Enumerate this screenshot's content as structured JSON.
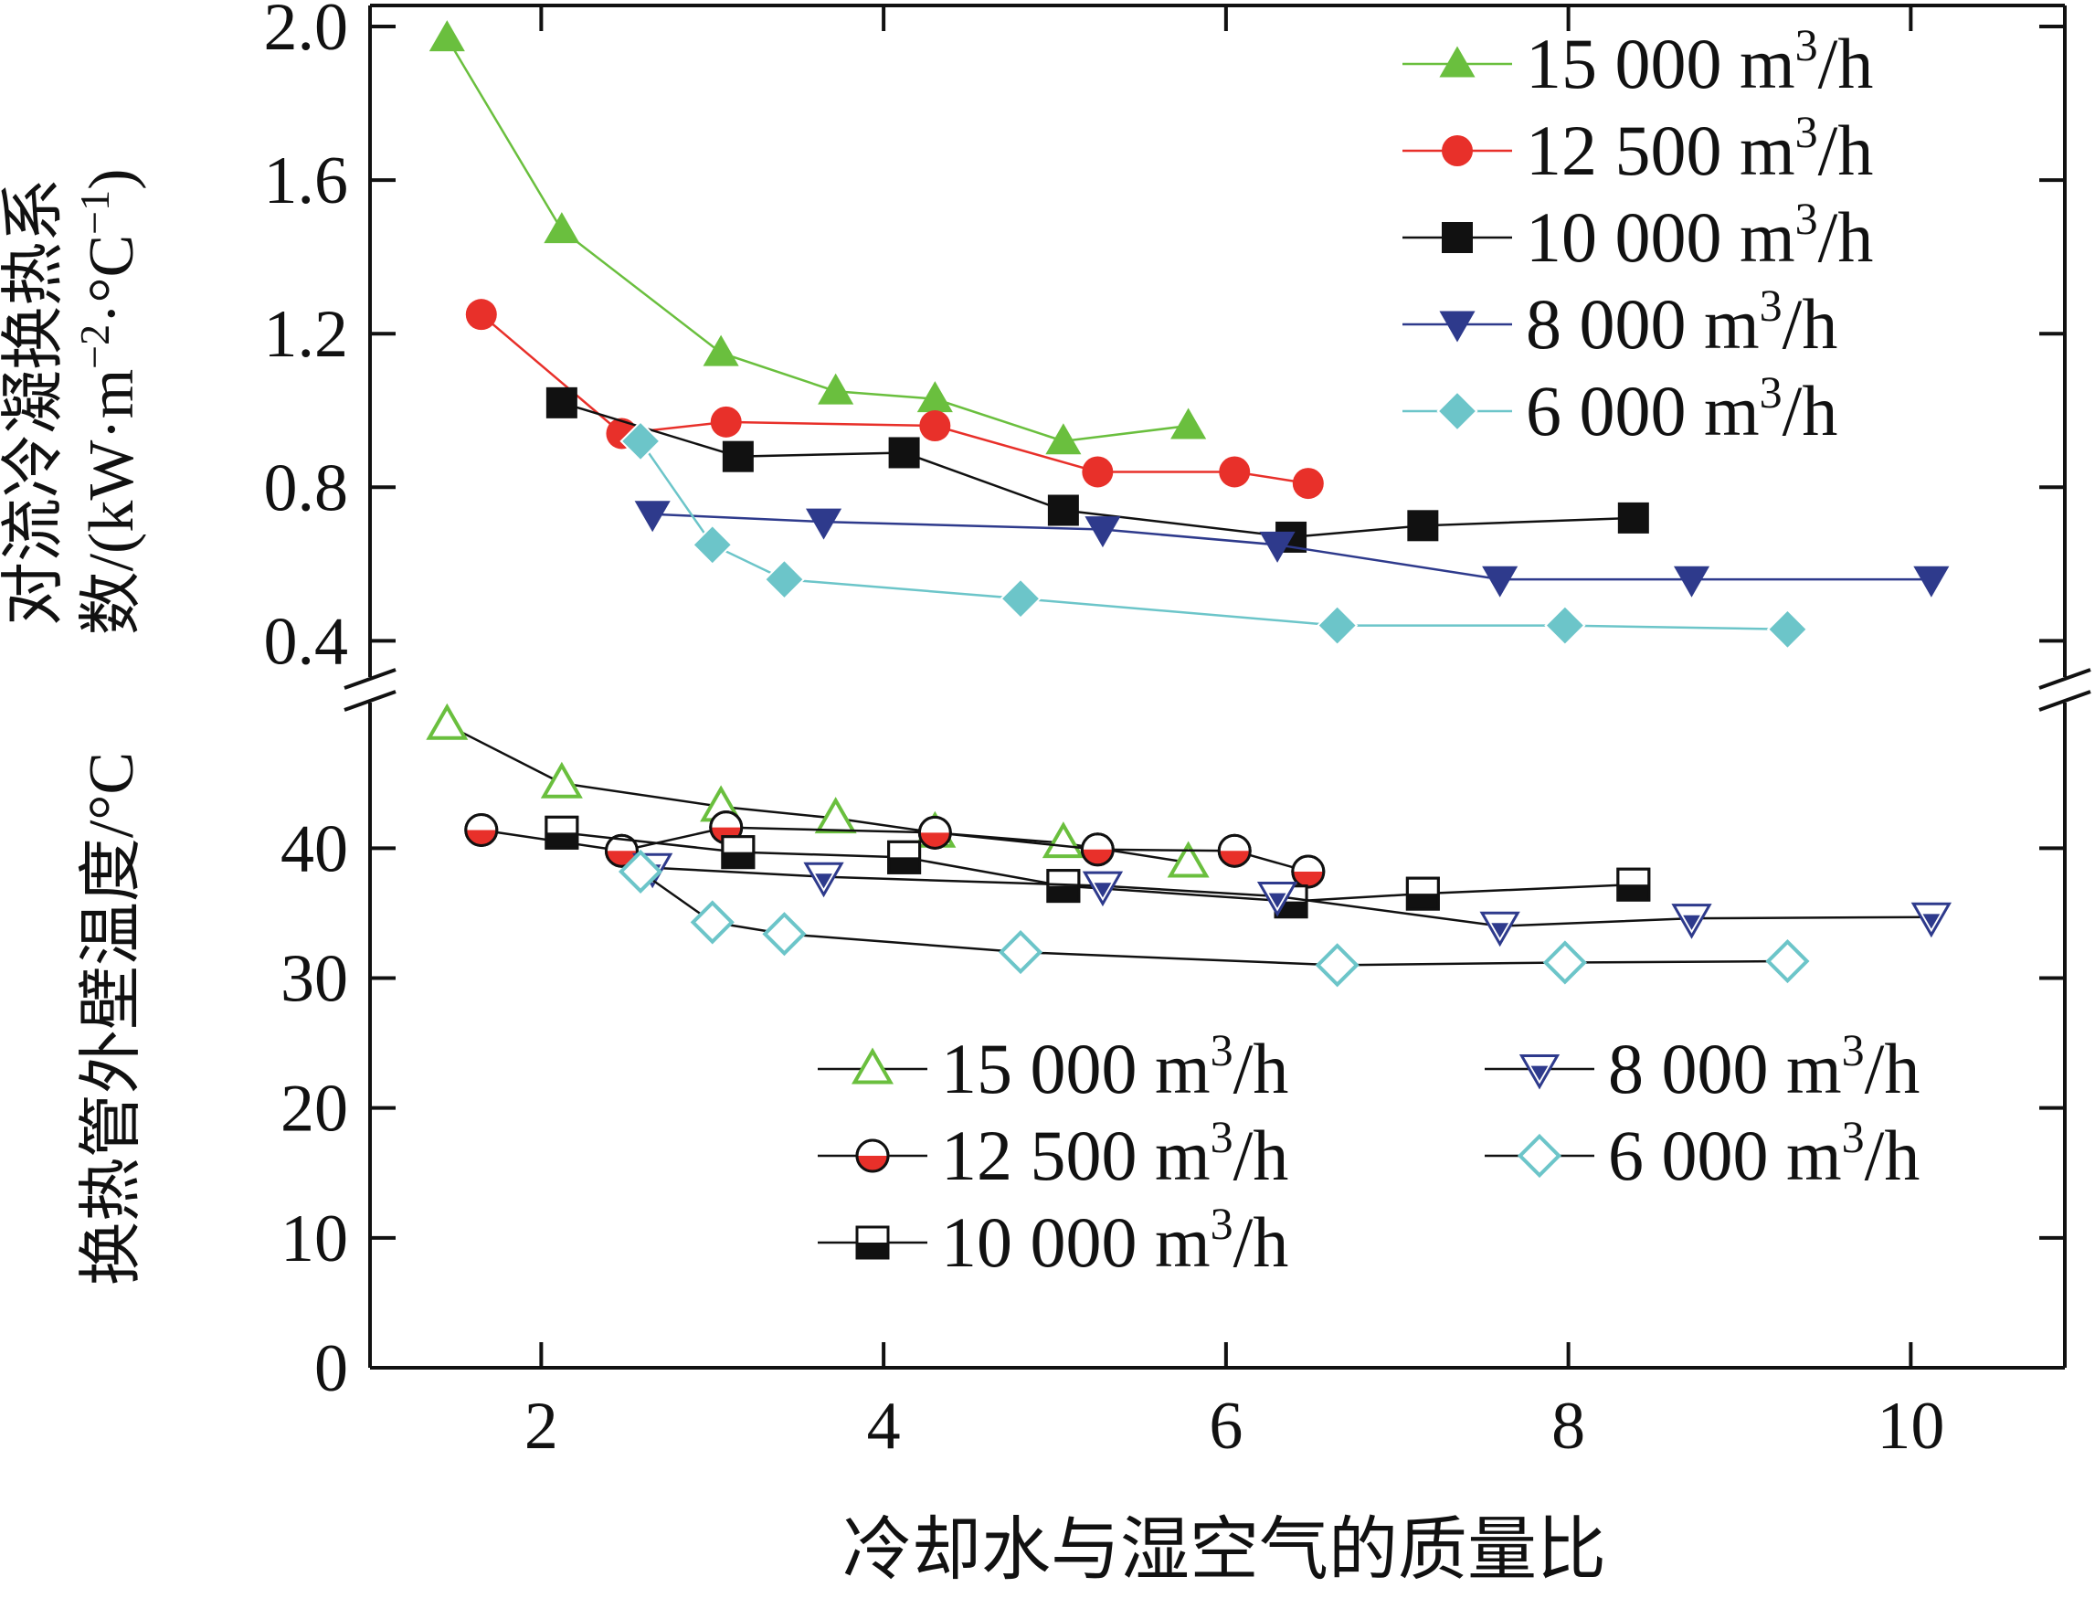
{
  "chart_data": {
    "type": "line",
    "xlabel": "冷却水与湿空气的质量比",
    "x_ticks": [
      2,
      4,
      6,
      8,
      10
    ],
    "xlim": [
      1,
      10.9
    ],
    "top_panel": {
      "ylabel_line1": "对流冷凝换热系",
      "ylabel_line2": "数/(kW·m",
      "ylabel_sup2": "−2",
      "ylabel_mid2": "·°C",
      "ylabel_sup3": "−1",
      "ylabel_end": ")",
      "ylim": [
        0.32,
        2.05
      ],
      "y_ticks": [
        "0.4",
        "0.8",
        "1.2",
        "1.6",
        "2.0"
      ],
      "legend_position": "top-right",
      "series": [
        {
          "name": "15 000",
          "unit": " m",
          "unit_sup": "3",
          "unit_end": "/h",
          "marker": "triangle-up",
          "fill": "filled",
          "color": "#6abf3e",
          "line_color": "#6abf3e",
          "x": [
            1.45,
            2.12,
            3.05,
            3.72,
            4.3,
            5.05,
            5.78
          ],
          "y": [
            1.97,
            1.47,
            1.15,
            1.05,
            1.03,
            0.92,
            0.96
          ]
        },
        {
          "name": "12 500",
          "unit": " m",
          "unit_sup": "3",
          "unit_end": "/h",
          "marker": "circle",
          "fill": "filled",
          "color": "#e8302a",
          "line_color": "#e8302a",
          "x": [
            1.65,
            2.47,
            3.08,
            4.3,
            5.25,
            6.05,
            6.48
          ],
          "y": [
            1.25,
            0.94,
            0.97,
            0.96,
            0.84,
            0.84,
            0.81
          ]
        },
        {
          "name": "10 000",
          "unit": " m",
          "unit_sup": "3",
          "unit_end": "/h",
          "marker": "square",
          "fill": "filled",
          "color": "#111111",
          "line_color": "#111111",
          "x": [
            2.12,
            3.15,
            4.12,
            5.05,
            6.38,
            7.15,
            8.38
          ],
          "y": [
            1.02,
            0.88,
            0.89,
            0.74,
            0.67,
            0.7,
            0.72
          ]
        },
        {
          "name": "8 000",
          "unit": " m",
          "unit_sup": "3",
          "unit_end": "/h",
          "marker": "triangle-down",
          "fill": "filled",
          "color": "#2e3a8c",
          "line_color": "#2e3a8c",
          "x": [
            2.65,
            3.65,
            5.28,
            6.3,
            7.6,
            8.72,
            10.12
          ],
          "y": [
            0.73,
            0.71,
            0.69,
            0.65,
            0.56,
            0.56,
            0.56
          ]
        },
        {
          "name": "6 000",
          "unit": " m",
          "unit_sup": "3",
          "unit_end": "/h",
          "marker": "diamond",
          "fill": "filled",
          "color": "#6cc5c9",
          "line_color": "#6cc5c9",
          "x": [
            2.58,
            3.0,
            3.42,
            4.8,
            6.65,
            7.98,
            9.28
          ],
          "y": [
            0.92,
            0.65,
            0.56,
            0.51,
            0.44,
            0.44,
            0.43
          ]
        }
      ]
    },
    "bottom_panel": {
      "ylabel": "换热管外壁温度/°C",
      "ylim": [
        0,
        51
      ],
      "y_ticks": [
        "0",
        "10",
        "20",
        "30",
        "40"
      ],
      "legend_position": "bottom-right",
      "series": [
        {
          "name": "15 000",
          "unit": " m",
          "unit_sup": "3",
          "unit_end": "/h",
          "marker": "triangle-up",
          "fill": "hollow",
          "color": "#6abf3e",
          "line_color": "#111111",
          "x": [
            1.45,
            2.12,
            3.05,
            3.72,
            4.3,
            5.05,
            5.78
          ],
          "y": [
            49.5,
            45.0,
            43.2,
            42.3,
            41.2,
            40.4,
            38.9
          ]
        },
        {
          "name": "12 500",
          "unit": " m",
          "unit_sup": "3",
          "unit_end": "/h",
          "marker": "circle",
          "fill": "half",
          "color": "#e8302a",
          "line_color": "#111111",
          "x": [
            1.65,
            2.47,
            3.08,
            4.3,
            5.25,
            6.05,
            6.48
          ],
          "y": [
            41.4,
            39.8,
            41.6,
            41.2,
            39.9,
            39.8,
            38.2
          ]
        },
        {
          "name": "10 000",
          "unit": " m",
          "unit_sup": "3",
          "unit_end": "/h",
          "marker": "square",
          "fill": "half",
          "color": "#111111",
          "line_color": "#111111",
          "x": [
            2.12,
            3.15,
            4.12,
            5.05,
            6.38,
            7.15,
            8.38
          ],
          "y": [
            41.2,
            39.7,
            39.3,
            37.1,
            35.9,
            36.5,
            37.2
          ]
        },
        {
          "name": "8 000",
          "unit": " m",
          "unit_sup": "3",
          "unit_end": "/h",
          "marker": "triangle-down",
          "fill": "hollow",
          "color": "#2e3a8c",
          "line_color": "#111111",
          "x": [
            2.65,
            3.65,
            5.28,
            6.3,
            7.6,
            8.72,
            10.12
          ],
          "y": [
            38.5,
            37.8,
            37.1,
            36.3,
            34.0,
            34.6,
            34.7
          ]
        },
        {
          "name": "6 000",
          "unit": " m",
          "unit_sup": "3",
          "unit_end": "/h",
          "marker": "diamond",
          "fill": "hollow",
          "color": "#6cc5c9",
          "line_color": "#111111",
          "x": [
            2.58,
            3.0,
            3.42,
            4.8,
            6.65,
            7.98,
            9.28
          ],
          "y": [
            38.2,
            34.3,
            33.4,
            32.0,
            31.0,
            31.2,
            31.3
          ]
        }
      ]
    }
  }
}
